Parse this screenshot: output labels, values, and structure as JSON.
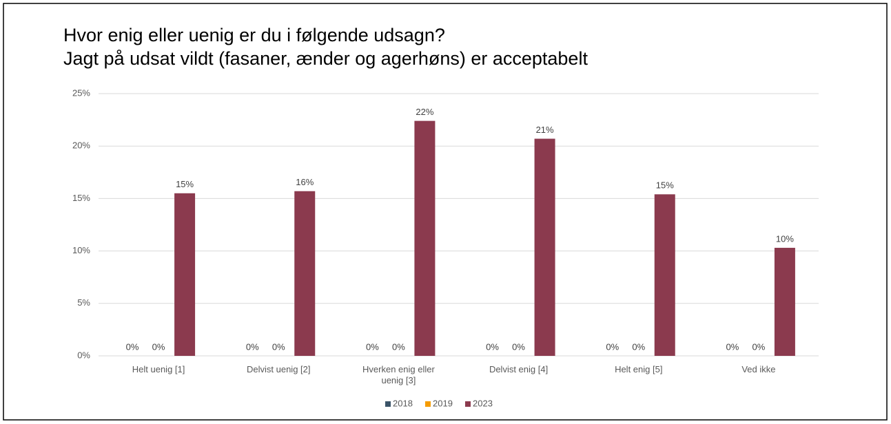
{
  "chart_data": {
    "type": "bar",
    "title": [
      "Hvor enig eller uenig er du i følgende udsagn?",
      "Jagt på udsat vildt (fasaner, ænder og agerhøns) er acceptabelt"
    ],
    "categories": [
      "Helt uenig [1]",
      "Delvist uenig [2]",
      "Hverken enig eller uenig [3]",
      "Delvist enig [4]",
      "Helt enig [5]",
      "Ved ikke"
    ],
    "series": [
      {
        "name": "2018",
        "color": "#3b5468",
        "values": [
          0,
          0,
          0,
          0,
          0,
          0
        ],
        "value_labels": [
          "0%",
          "0%",
          "0%",
          "0%",
          "0%",
          "0%"
        ]
      },
      {
        "name": "2019",
        "color": "#f59c00",
        "values": [
          0,
          0,
          0,
          0,
          0,
          0
        ],
        "value_labels": [
          "0%",
          "0%",
          "0%",
          "0%",
          "0%",
          "0%"
        ]
      },
      {
        "name": "2023",
        "color": "#8b3a4e",
        "values": [
          15.5,
          15.7,
          22.4,
          20.7,
          15.4,
          10.3
        ],
        "value_labels": [
          "15%",
          "16%",
          "22%",
          "21%",
          "15%",
          "10%"
        ]
      }
    ],
    "ylim": [
      0,
      25
    ],
    "yticks": [
      {
        "value": 0,
        "label": "0%"
      },
      {
        "value": 5,
        "label": "5%"
      },
      {
        "value": 10,
        "label": "10%"
      },
      {
        "value": 15,
        "label": "15%"
      },
      {
        "value": 20,
        "label": "20%"
      },
      {
        "value": 25,
        "label": "25%"
      }
    ],
    "grid": true,
    "legend": "bottom"
  }
}
